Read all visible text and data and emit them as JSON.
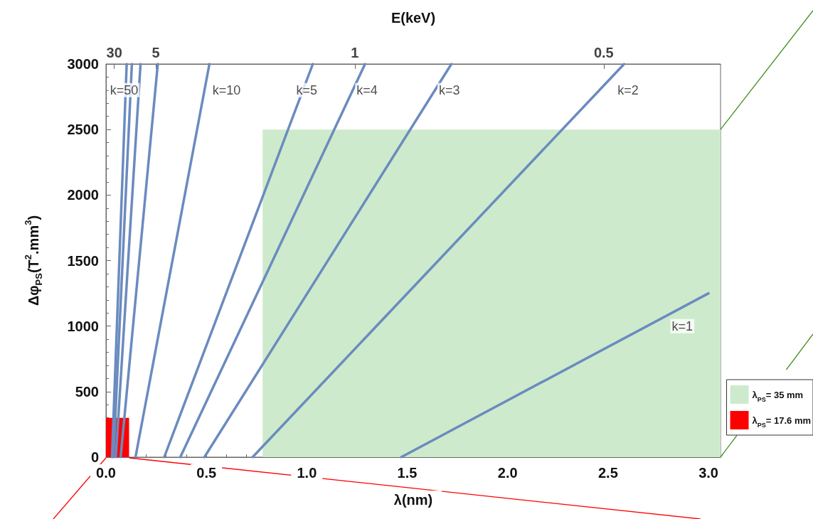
{
  "chart_data": {
    "type": "line",
    "xlabel": "λ(nm)",
    "ylabel": "Δφ$_{PS}$(T$^{2}$.mm$^{3}$)",
    "x2label": "E(keV)",
    "xlim": [
      0,
      3.06
    ],
    "ylim": [
      0,
      3000
    ],
    "xticks": [
      {
        "value": 0,
        "label": "0.0"
      },
      {
        "value": 0.5,
        "label": "0.5"
      },
      {
        "value": 1,
        "label": "1.0"
      },
      {
        "value": 1.5,
        "label": "1.5"
      },
      {
        "value": 2,
        "label": "2.0"
      },
      {
        "value": 2.5,
        "label": "2.5"
      },
      {
        "value": 3,
        "label": "3.0"
      }
    ],
    "yticks": [
      0,
      500,
      1000,
      1500,
      2000,
      2500,
      3000
    ],
    "series": [
      {
        "color": "#6b8bbf",
        "x": [
          0.03,
          0.103
        ],
        "values": [
          0,
          3000
        ]
      },
      {
        "color": "#6b8bbf",
        "x": [
          0.037,
          0.129
        ],
        "values": [
          0,
          3000
        ]
      },
      {
        "color": "#6b8bbf",
        "x": [
          0.049,
          0.172
        ],
        "values": [
          0,
          3000
        ]
      },
      {
        "color": "#6b8bbf",
        "x": [
          0.073,
          0.258
        ],
        "values": [
          0,
          3000
        ]
      },
      {
        "color": "#6b8bbf",
        "x": [
          0.147,
          0.515
        ],
        "values": [
          0,
          3000
        ]
      },
      {
        "color": "#6b8bbf",
        "x": [
          0.29,
          1.03
        ],
        "values": [
          0,
          3000
        ]
      },
      {
        "color": "#6b8bbf",
        "x": [
          0.37,
          1.29
        ],
        "values": [
          0,
          3000
        ]
      },
      {
        "color": "#6b8bbf",
        "x": [
          0.49,
          1.72
        ],
        "values": [
          0,
          3000
        ]
      },
      {
        "color": "#6b8bbf",
        "x": [
          0.73,
          2.58
        ],
        "values": [
          0,
          3000
        ]
      },
      {
        "color": "#6b8bbf",
        "x": [
          1.47,
          3.0
        ],
        "values": [
          0,
          1250
        ]
      },
      {
        "type": "area",
        "name": "λ$_{PS}$= 35 mm",
        "color": "#cdebcc",
        "x": [
          0.78,
          3.06
        ],
        "values": [
          2500,
          2500
        ]
      },
      {
        "type": "area",
        "name": "λ$_{PS}$= 17.6 mm",
        "color": "#ff0000",
        "x": [
          0,
          0.115
        ],
        "values": [
          300,
          300
        ]
      }
    ],
    "annotations": [
      {
        "text": "k=50",
        "x": 0.09,
        "y": 2800
      },
      {
        "text": "k=10",
        "x": 0.6,
        "y": 2800
      },
      {
        "text": "k=5",
        "x": 1.0,
        "y": 2800
      },
      {
        "text": "k=4",
        "x": 1.3,
        "y": 2800
      },
      {
        "text": "k=3",
        "x": 1.71,
        "y": 2800
      },
      {
        "text": "k=2",
        "x": 2.6,
        "y": 2800
      },
      {
        "text": "k=1",
        "x": 2.87,
        "y": 1000
      },
      "30",
      "5",
      "1",
      "0.5"
    ],
    "legend": "bottom right",
    "grid": false,
    "line_style": "solid"
  }
}
